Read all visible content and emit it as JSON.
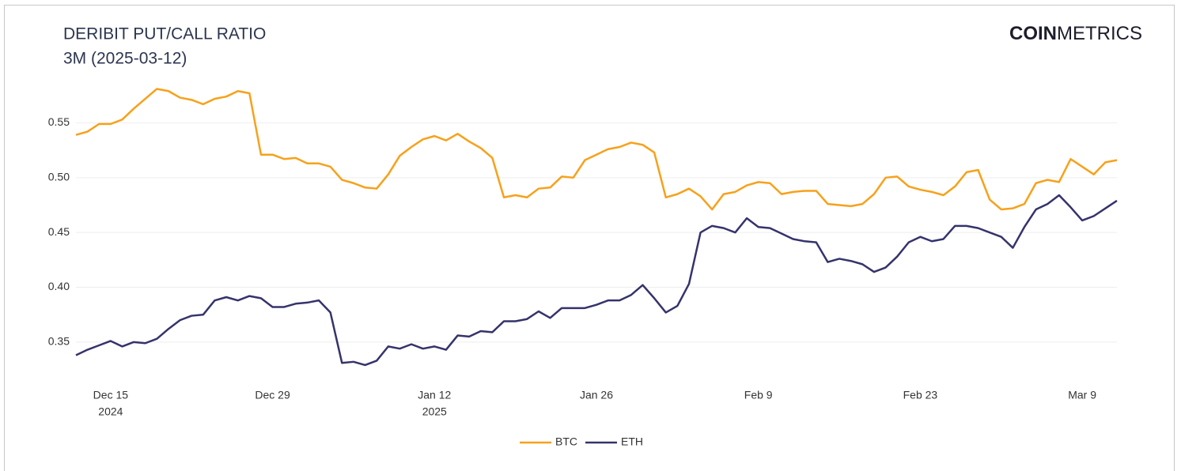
{
  "chart_data": {
    "type": "line",
    "title": "DERIBIT PUT/CALL RATIO",
    "subtitle": "3M (2025-03-12)",
    "logo": {
      "bold": "COIN",
      "light": "METRICS"
    },
    "x": [
      "2024-12-12",
      "2024-12-13",
      "2024-12-14",
      "2024-12-15",
      "2024-12-16",
      "2024-12-17",
      "2024-12-18",
      "2024-12-19",
      "2024-12-20",
      "2024-12-21",
      "2024-12-22",
      "2024-12-23",
      "2024-12-24",
      "2024-12-25",
      "2024-12-26",
      "2024-12-27",
      "2024-12-28",
      "2024-12-29",
      "2024-12-30",
      "2024-12-31",
      "2025-01-01",
      "2025-01-02",
      "2025-01-03",
      "2025-01-04",
      "2025-01-05",
      "2025-01-06",
      "2025-01-07",
      "2025-01-08",
      "2025-01-09",
      "2025-01-10",
      "2025-01-11",
      "2025-01-12",
      "2025-01-13",
      "2025-01-14",
      "2025-01-15",
      "2025-01-16",
      "2025-01-17",
      "2025-01-18",
      "2025-01-19",
      "2025-01-20",
      "2025-01-21",
      "2025-01-22",
      "2025-01-23",
      "2025-01-24",
      "2025-01-25",
      "2025-01-26",
      "2025-01-27",
      "2025-01-28",
      "2025-01-29",
      "2025-01-30",
      "2025-01-31",
      "2025-02-01",
      "2025-02-02",
      "2025-02-03",
      "2025-02-04",
      "2025-02-05",
      "2025-02-06",
      "2025-02-07",
      "2025-02-08",
      "2025-02-09",
      "2025-02-10",
      "2025-02-11",
      "2025-02-12",
      "2025-02-13",
      "2025-02-14",
      "2025-02-15",
      "2025-02-16",
      "2025-02-17",
      "2025-02-18",
      "2025-02-19",
      "2025-02-20",
      "2025-02-21",
      "2025-02-22",
      "2025-02-23",
      "2025-02-24",
      "2025-02-25",
      "2025-02-26",
      "2025-02-27",
      "2025-02-28",
      "2025-03-01",
      "2025-03-02",
      "2025-03-03",
      "2025-03-04",
      "2025-03-05",
      "2025-03-06",
      "2025-03-07",
      "2025-03-08",
      "2025-03-09",
      "2025-03-10",
      "2025-03-11",
      "2025-03-12"
    ],
    "series": [
      {
        "name": "BTC",
        "color": "#f7a11a",
        "values": [
          0.539,
          0.542,
          0.549,
          0.549,
          0.553,
          0.563,
          0.572,
          0.581,
          0.579,
          0.573,
          0.571,
          0.567,
          0.572,
          0.574,
          0.579,
          0.577,
          0.521,
          0.521,
          0.517,
          0.518,
          0.513,
          0.513,
          0.51,
          0.498,
          0.495,
          0.491,
          0.49,
          0.503,
          0.52,
          0.528,
          0.535,
          0.538,
          0.534,
          0.54,
          0.533,
          0.527,
          0.518,
          0.482,
          0.484,
          0.482,
          0.49,
          0.491,
          0.501,
          0.5,
          0.516,
          0.521,
          0.526,
          0.528,
          0.532,
          0.53,
          0.523,
          0.482,
          0.485,
          0.49,
          0.483,
          0.471,
          0.485,
          0.487,
          0.493,
          0.496,
          0.495,
          0.485,
          0.487,
          0.488,
          0.488,
          0.476,
          0.475,
          0.474,
          0.476,
          0.485,
          0.5,
          0.501,
          0.492,
          0.489,
          0.487,
          0.484,
          0.492,
          0.505,
          0.507,
          0.48,
          0.471,
          0.472,
          0.476,
          0.495,
          0.498,
          0.496,
          0.517,
          0.51,
          0.503,
          0.514,
          0.516
        ]
      },
      {
        "name": "ETH",
        "color": "#35336b",
        "values": [
          0.338,
          0.343,
          0.347,
          0.351,
          0.346,
          0.35,
          0.349,
          0.353,
          0.362,
          0.37,
          0.374,
          0.375,
          0.388,
          0.391,
          0.388,
          0.392,
          0.39,
          0.382,
          0.382,
          0.385,
          0.386,
          0.388,
          0.377,
          0.331,
          0.332,
          0.329,
          0.333,
          0.346,
          0.344,
          0.348,
          0.344,
          0.346,
          0.343,
          0.356,
          0.355,
          0.36,
          0.359,
          0.369,
          0.369,
          0.371,
          0.378,
          0.372,
          0.381,
          0.381,
          0.381,
          0.384,
          0.388,
          0.388,
          0.393,
          0.402,
          0.39,
          0.377,
          0.383,
          0.403,
          0.45,
          0.456,
          0.454,
          0.45,
          0.463,
          0.455,
          0.454,
          0.449,
          0.444,
          0.442,
          0.441,
          0.423,
          0.426,
          0.424,
          0.421,
          0.414,
          0.418,
          0.428,
          0.441,
          0.446,
          0.442,
          0.444,
          0.456,
          0.456,
          0.454,
          0.45,
          0.446,
          0.436,
          0.455,
          0.471,
          0.476,
          0.484,
          0.473,
          0.461,
          0.465,
          0.472,
          0.479
        ]
      }
    ],
    "xlim": [
      "2024-12-12",
      "2025-03-12"
    ],
    "xticks": [
      {
        "value": "2024-12-15",
        "label": "Dec 15",
        "sublabel": "2024"
      },
      {
        "value": "2024-12-29",
        "label": "Dec 29"
      },
      {
        "value": "2025-01-12",
        "label": "Jan 12",
        "sublabel": "2025"
      },
      {
        "value": "2025-01-26",
        "label": "Jan 26"
      },
      {
        "value": "2025-02-09",
        "label": "Feb 9"
      },
      {
        "value": "2025-02-23",
        "label": "Feb 23"
      },
      {
        "value": "2025-03-09",
        "label": "Mar 9"
      }
    ],
    "ylim": [
      0.316,
      0.59
    ],
    "yticks": [
      0.35,
      {
        "value": 0.4,
        "label": "0.40"
      },
      0.45,
      {
        "value": 0.5,
        "label": "0.50"
      },
      0.55
    ],
    "grid": true,
    "legend": "bottom"
  }
}
